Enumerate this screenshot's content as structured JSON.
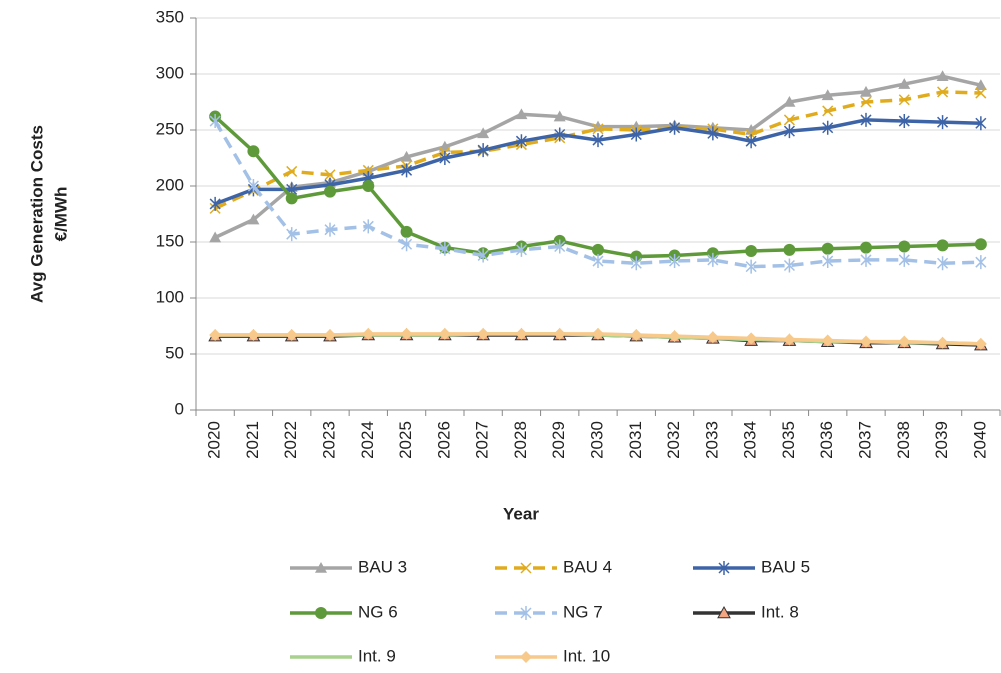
{
  "chart_data": {
    "type": "line",
    "x_label": "Year",
    "y_label": [
      "Avg Generation Costs",
      "€/MWh"
    ],
    "categories": [
      "2020",
      "2021",
      "2022",
      "2023",
      "2024",
      "2025",
      "2026",
      "2027",
      "2028",
      "2029",
      "2030",
      "2031",
      "2032",
      "2033",
      "2034",
      "2035",
      "2036",
      "2037",
      "2038",
      "2039",
      "2040"
    ],
    "ylim": [
      0,
      350
    ],
    "yticks": [
      0,
      50,
      100,
      150,
      200,
      250,
      300,
      350
    ],
    "grid": true,
    "legend": "bottom",
    "series": [
      {
        "name": "BAU 3",
        "color": "#a5a5a5",
        "marker": "triangle",
        "dash": false,
        "values": [
          154,
          170,
          199,
          203,
          213,
          226,
          235,
          247,
          264,
          262,
          253,
          253,
          254,
          252,
          250,
          275,
          281,
          284,
          291,
          298,
          290
        ]
      },
      {
        "name": "BAU 4",
        "color": "#e0ac1e",
        "marker": "x",
        "dash": true,
        "values": [
          180,
          196,
          213,
          210,
          214,
          218,
          230,
          231,
          237,
          243,
          251,
          250,
          252,
          251,
          246,
          259,
          267,
          275,
          277,
          284,
          283
        ]
      },
      {
        "name": "BAU 5",
        "color": "#3e64a8",
        "marker": "asterisk",
        "dash": false,
        "values": [
          184,
          197,
          197,
          201,
          207,
          214,
          225,
          232,
          240,
          246,
          241,
          246,
          252,
          247,
          240,
          249,
          252,
          259,
          258,
          257,
          256
        ]
      },
      {
        "name": "NG 6",
        "color": "#5f9a3a",
        "marker": "circle",
        "dash": false,
        "values": [
          262,
          231,
          189,
          195,
          200,
          159,
          145,
          140,
          146,
          151,
          143,
          137,
          138,
          140,
          142,
          143,
          144,
          145,
          146,
          147,
          148
        ]
      },
      {
        "name": "NG 7",
        "color": "#a3c0e6",
        "marker": "star",
        "dash": true,
        "values": [
          258,
          200,
          157,
          161,
          164,
          148,
          144,
          138,
          143,
          146,
          133,
          131,
          133,
          134,
          128,
          129,
          133,
          134,
          134,
          131,
          132
        ]
      },
      {
        "name": "Int. 8",
        "color": "#333333",
        "marker": "triangle-salmon",
        "dash": false,
        "values": [
          66,
          66,
          66,
          66,
          67,
          67,
          67,
          67,
          67,
          67,
          67,
          66,
          65,
          64,
          62,
          62,
          61,
          60,
          60,
          59,
          58
        ]
      },
      {
        "name": "Int. 9",
        "color": "#a9d18e",
        "marker": "none",
        "dash": false,
        "values": [
          67,
          67,
          67,
          67,
          67,
          67,
          67,
          68,
          68,
          68,
          67,
          66,
          65,
          64,
          63,
          62,
          61,
          61,
          60,
          60,
          59
        ]
      },
      {
        "name": "Int. 10",
        "color": "#f7c98a",
        "marker": "diamond",
        "dash": false,
        "values": [
          67,
          67,
          67,
          67,
          68,
          68,
          68,
          68,
          68,
          68,
          68,
          67,
          66,
          65,
          64,
          63,
          62,
          61,
          61,
          60,
          59
        ]
      }
    ]
  }
}
